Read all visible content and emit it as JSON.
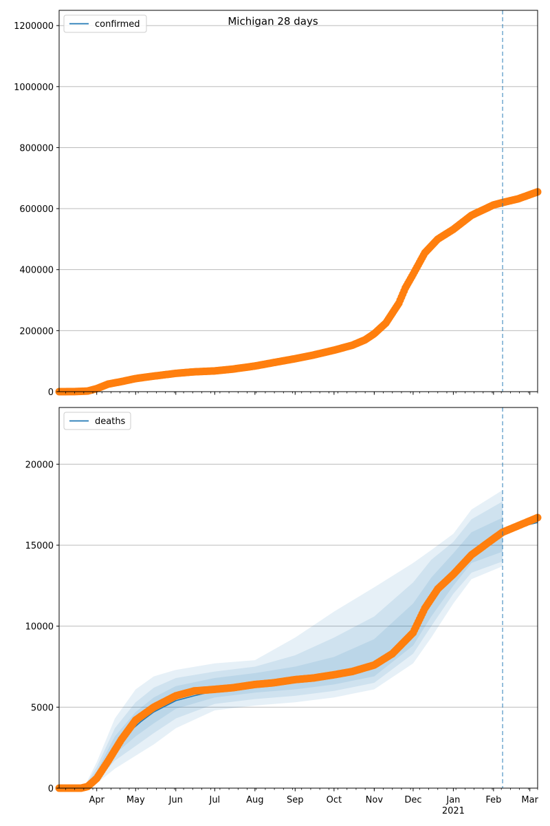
{
  "title": "Michigan 28 days",
  "chart_data": [
    {
      "type": "line",
      "legend": "confirmed",
      "legend_position": "top-left",
      "grid": "y",
      "ylim": [
        0,
        1250000
      ],
      "yticks": [
        0,
        200000,
        400000,
        600000,
        800000,
        1000000,
        1200000
      ],
      "ytick_labels": [
        "0",
        "200000",
        "400000",
        "600000",
        "800000",
        "1000000",
        "1200000"
      ],
      "xlim": [
        "2020-03-03",
        "2021-03-07"
      ],
      "forecast_start": "2021-02-08",
      "colors": {
        "model": "#1f77b4",
        "observed": "#ff7f0e",
        "band": "#1f77b4"
      },
      "observed": {
        "x": [
          "2020-03-03",
          "2020-03-15",
          "2020-03-25",
          "2020-04-01",
          "2020-04-10",
          "2020-04-20",
          "2020-05-01",
          "2020-05-15",
          "2020-06-01",
          "2020-06-15",
          "2020-07-01",
          "2020-07-15",
          "2020-08-01",
          "2020-08-15",
          "2020-09-01",
          "2020-09-15",
          "2020-10-01",
          "2020-10-15",
          "2020-10-25",
          "2020-11-01",
          "2020-11-10",
          "2020-11-20",
          "2020-11-25",
          "2020-12-01",
          "2020-12-10",
          "2020-12-20",
          "2021-01-01",
          "2021-01-15",
          "2021-02-01",
          "2021-02-08",
          "2021-02-20",
          "2021-03-07"
        ],
        "y": [
          0,
          300,
          2000,
          10000,
          25000,
          33000,
          43000,
          51000,
          60000,
          65000,
          68000,
          74000,
          84000,
          95000,
          108000,
          120000,
          136000,
          152000,
          170000,
          190000,
          225000,
          290000,
          340000,
          385000,
          455000,
          500000,
          532000,
          578000,
          612000,
          620000,
          632000,
          655000
        ]
      }
    },
    {
      "type": "line",
      "legend": "deaths",
      "legend_position": "top-left",
      "grid": "y",
      "ylim": [
        0,
        23500
      ],
      "yticks": [
        0,
        5000,
        10000,
        15000,
        20000
      ],
      "ytick_labels": [
        "0",
        "5000",
        "10000",
        "15000",
        "20000"
      ],
      "xlim": [
        "2020-03-03",
        "2021-03-07"
      ],
      "xticks": [
        "2020-04-01",
        "2020-05-01",
        "2020-06-01",
        "2020-07-01",
        "2020-08-01",
        "2020-09-01",
        "2020-10-01",
        "2020-11-01",
        "2020-12-01",
        "2021-01-01",
        "2021-02-01",
        "2021-03-01"
      ],
      "xtick_labels": [
        "Apr",
        "May",
        "Jun",
        "Jul",
        "Aug",
        "Sep",
        "Oct",
        "Nov",
        "Dec",
        "Jan",
        "Feb",
        "Mar"
      ],
      "xtick_sublabel": "2021",
      "forecast_start": "2021-02-08",
      "colors": {
        "model": "#1f77b4",
        "observed": "#ff7f0e",
        "band": "#1f77b4"
      },
      "model": {
        "x": [
          "2020-03-03",
          "2020-03-20",
          "2020-03-28",
          "2020-04-05",
          "2020-04-15",
          "2020-04-25",
          "2020-05-05",
          "2020-05-15",
          "2020-06-01",
          "2020-06-15",
          "2020-07-01",
          "2020-07-15",
          "2020-08-01",
          "2020-09-01",
          "2020-10-01",
          "2020-10-15",
          "2020-11-01",
          "2020-11-15",
          "2020-12-01",
          "2020-12-15",
          "2021-01-01",
          "2021-01-15",
          "2021-02-01",
          "2021-02-08"
        ],
        "y": [
          0,
          0,
          100,
          900,
          2400,
          3400,
          4100,
          4700,
          5400,
          5700,
          6000,
          6200,
          6400,
          6800,
          7100,
          7300,
          7700,
          8300,
          9600,
          11600,
          13300,
          14400,
          15200,
          15600
        ]
      },
      "forecast": {
        "x": [
          "2021-02-08",
          "2021-02-20",
          "2021-03-07"
        ],
        "y": [
          15800,
          16100,
          16400
        ]
      },
      "bands": [
        {
          "x": [
            "2020-03-03",
            "2020-03-22",
            "2020-04-01",
            "2020-04-15",
            "2020-05-01",
            "2020-05-15",
            "2020-06-01",
            "2020-07-01",
            "2020-08-01",
            "2020-09-01",
            "2020-10-01",
            "2020-11-01",
            "2020-12-01",
            "2020-12-15",
            "2021-01-01",
            "2021-01-15",
            "2021-02-08"
          ],
          "lower": [
            0,
            0,
            300,
            1200,
            2000,
            2700,
            3700,
            4800,
            5100,
            5300,
            5600,
            6100,
            7700,
            9300,
            11400,
            12900,
            13700
          ],
          "upper": [
            0,
            0,
            1600,
            4300,
            6100,
            6900,
            7300,
            7700,
            7900,
            9300,
            10900,
            12400,
            13900,
            14700,
            15700,
            17200,
            18400
          ]
        },
        {
          "x": [
            "2020-03-03",
            "2020-03-22",
            "2020-04-01",
            "2020-04-15",
            "2020-05-01",
            "2020-05-15",
            "2020-06-01",
            "2020-07-01",
            "2020-08-01",
            "2020-09-01",
            "2020-10-01",
            "2020-11-01",
            "2020-12-01",
            "2020-12-15",
            "2021-01-01",
            "2021-01-15",
            "2021-02-08"
          ],
          "lower": [
            0,
            0,
            450,
            1700,
            2600,
            3400,
            4300,
            5200,
            5500,
            5700,
            6000,
            6500,
            8300,
            10000,
            12000,
            13300,
            14000
          ],
          "upper": [
            0,
            0,
            1300,
            3700,
            5300,
            6200,
            6800,
            7200,
            7500,
            8200,
            9300,
            10600,
            12700,
            14100,
            15200,
            16600,
            17700
          ]
        },
        {
          "x": [
            "2020-03-03",
            "2020-03-22",
            "2020-04-01",
            "2020-04-15",
            "2020-05-01",
            "2020-05-15",
            "2020-06-01",
            "2020-07-01",
            "2020-08-01",
            "2020-09-01",
            "2020-10-01",
            "2020-11-01",
            "2020-12-01",
            "2020-12-15",
            "2021-01-01",
            "2021-01-15",
            "2021-02-08"
          ],
          "lower": [
            0,
            0,
            600,
            2100,
            3200,
            4000,
            4900,
            5600,
            5900,
            6100,
            6400,
            6900,
            8800,
            10600,
            12500,
            13900,
            14600
          ],
          "upper": [
            0,
            0,
            1050,
            3200,
            4700,
            5600,
            6300,
            6800,
            7100,
            7500,
            8100,
            9200,
            11400,
            13000,
            14500,
            15800,
            16700
          ]
        }
      ],
      "observed": {
        "x": [
          "2020-03-03",
          "2020-03-20",
          "2020-03-25",
          "2020-04-01",
          "2020-04-10",
          "2020-04-20",
          "2020-05-01",
          "2020-05-15",
          "2020-06-01",
          "2020-06-15",
          "2020-07-01",
          "2020-07-15",
          "2020-08-01",
          "2020-08-15",
          "2020-09-01",
          "2020-09-15",
          "2020-10-01",
          "2020-10-15",
          "2020-11-01",
          "2020-11-15",
          "2020-12-01",
          "2020-12-10",
          "2020-12-20",
          "2021-01-01",
          "2021-01-15",
          "2021-02-01",
          "2021-02-08",
          "2021-02-20",
          "2021-03-07"
        ],
        "y": [
          0,
          0,
          100,
          600,
          1700,
          3000,
          4200,
          5000,
          5700,
          6000,
          6100,
          6200,
          6400,
          6500,
          6700,
          6800,
          7000,
          7200,
          7600,
          8300,
          9600,
          11100,
          12300,
          13200,
          14400,
          15400,
          15800,
          16200,
          16700
        ]
      }
    }
  ]
}
